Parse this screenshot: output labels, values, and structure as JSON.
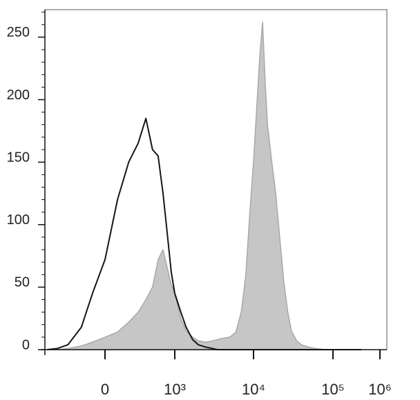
{
  "chart_data": {
    "type": "line",
    "x": [
      -700,
      -500,
      -350,
      -200,
      -100,
      0,
      100,
      200,
      300,
      400,
      500,
      600,
      700,
      800,
      900,
      1000,
      1200,
      1400,
      1700,
      2000,
      2500,
      3000,
      3500,
      4000,
      5000,
      6000,
      7000,
      8000,
      9000,
      10000,
      11000,
      12000,
      13000,
      14000,
      15000,
      17000,
      19000,
      21000,
      24000,
      27000,
      30000,
      35000,
      40000,
      50000,
      60000,
      80000,
      100000,
      200000,
      400000
    ],
    "series": [
      {
        "color": "#c6c6c6",
        "stroke": "#a8a8a8",
        "fill": true,
        "values": [
          0,
          0,
          1,
          3,
          6,
          10,
          14,
          22,
          30,
          40,
          50,
          72,
          80,
          65,
          52,
          45,
          25,
          15,
          10,
          7,
          6,
          7,
          8,
          9,
          10,
          14,
          30,
          60,
          110,
          150,
          195,
          235,
          262,
          215,
          180,
          150,
          125,
          95,
          55,
          30,
          15,
          7,
          4,
          2,
          1,
          0,
          0,
          0,
          0
        ]
      },
      {
        "color": "#151515",
        "fill": false,
        "values": [
          0,
          1,
          4,
          18,
          45,
          72,
          120,
          150,
          165,
          185,
          160,
          155,
          125,
          92,
          62,
          45,
          30,
          18,
          8,
          4,
          2,
          1,
          0,
          0,
          0,
          0,
          0,
          0,
          0,
          0,
          0,
          0,
          0,
          0,
          0,
          0,
          0,
          0,
          0,
          0,
          0,
          0,
          0,
          0,
          0,
          0,
          0,
          0,
          0
        ]
      }
    ],
    "xscale": "asinh",
    "xlim": [
      -750,
      1500000
    ],
    "xticks": [
      0,
      {
        "value": 1000,
        "label": "10³"
      },
      {
        "value": 10000,
        "label": "10⁴"
      },
      {
        "value": 100000,
        "label": "10⁵"
      },
      {
        "value": 1000000,
        "label": "10⁶"
      }
    ],
    "ylim": [
      0,
      272
    ],
    "yticks": [
      0,
      50,
      100,
      150,
      200,
      250
    ],
    "yminorticks": [
      10,
      20,
      30,
      40,
      60,
      70,
      80,
      90,
      110,
      120,
      130,
      140,
      160,
      170,
      180,
      190,
      210,
      220,
      230,
      240,
      260,
      270
    ]
  }
}
